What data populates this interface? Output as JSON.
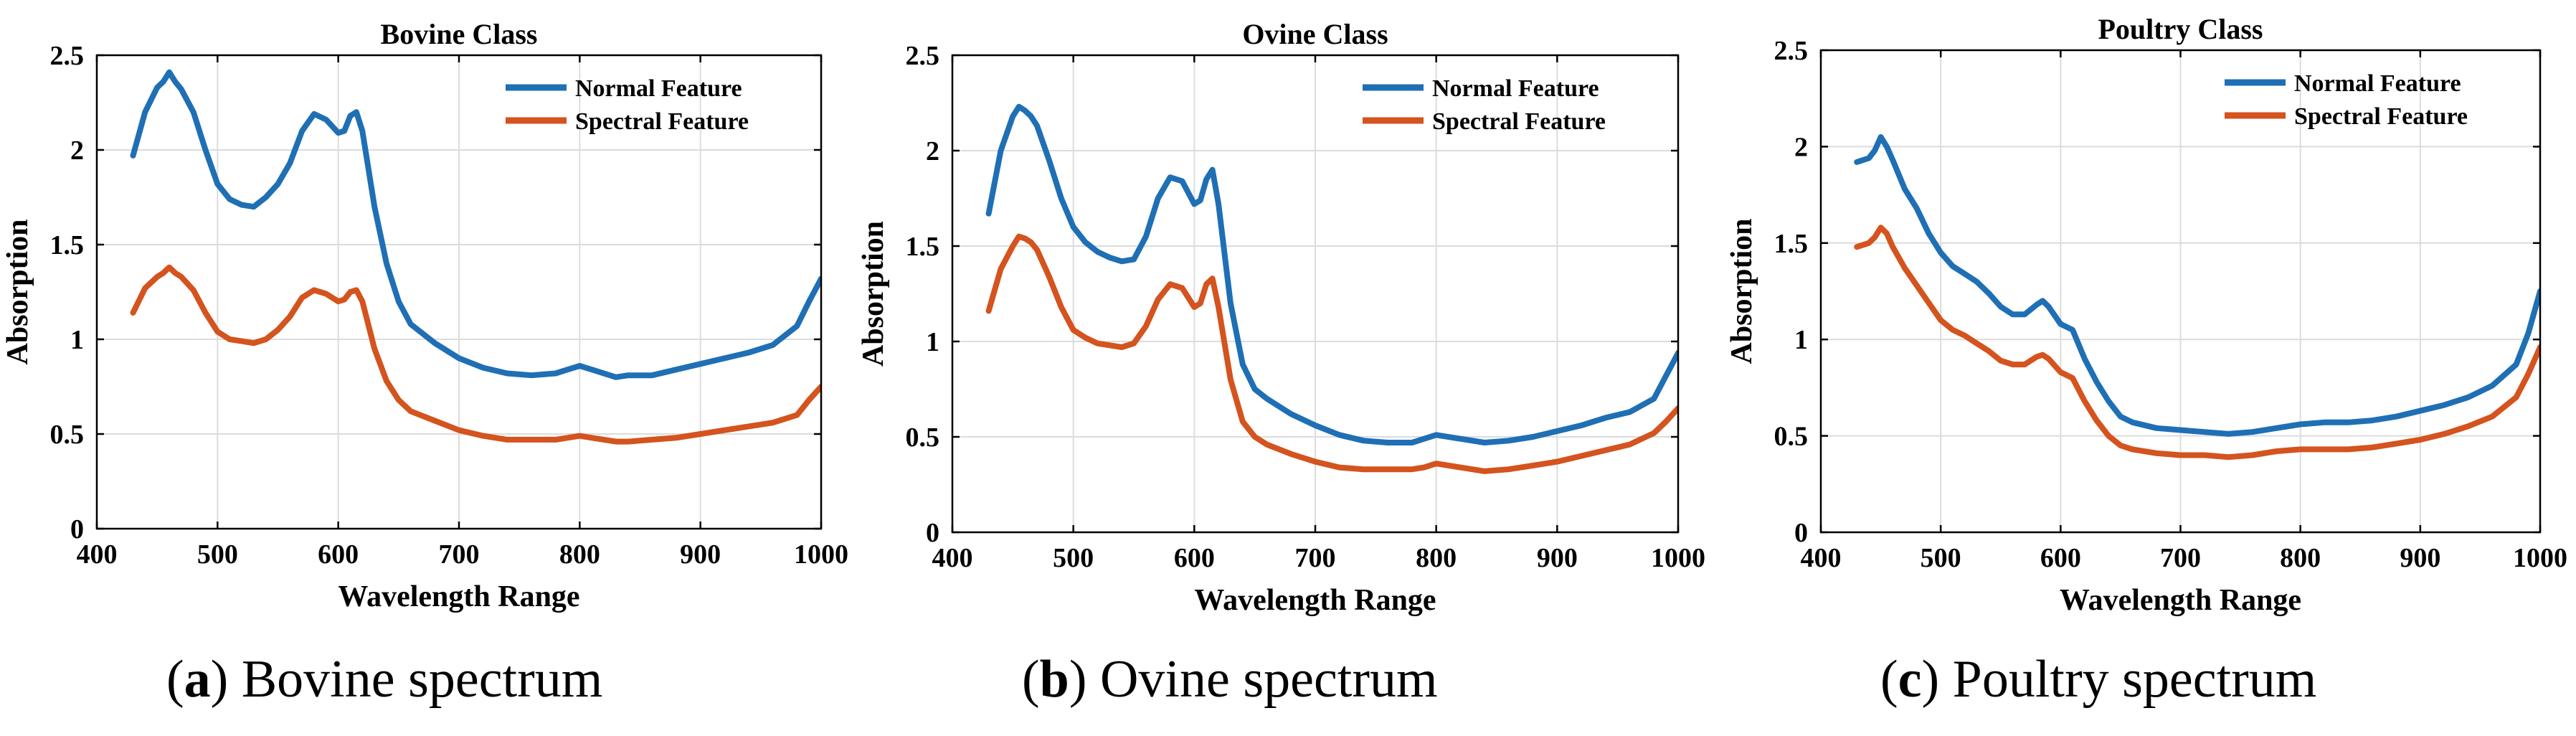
{
  "chart_data": [
    {
      "type": "line",
      "title": "Bovine Class",
      "xlabel": "Wavelength Range",
      "ylabel": "Absorption",
      "xlim": [
        400,
        1000
      ],
      "ylim": [
        0,
        2.5
      ],
      "xticks": [
        "400",
        "500",
        "600",
        "700",
        "800",
        "900",
        "1000"
      ],
      "yticks": [
        "0",
        "0.5",
        "1",
        "1.5",
        "2",
        "2.5"
      ],
      "grid": true,
      "legend_position": "top-right",
      "series": [
        {
          "name": "Normal Feature",
          "color": "#1f6fb5",
          "x": [
            430,
            440,
            450,
            455,
            460,
            465,
            470,
            480,
            490,
            500,
            510,
            520,
            530,
            540,
            550,
            560,
            570,
            580,
            590,
            600,
            605,
            610,
            615,
            620,
            630,
            640,
            650,
            660,
            680,
            700,
            720,
            740,
            760,
            780,
            790,
            800,
            810,
            830,
            840,
            860,
            880,
            900,
            920,
            940,
            960,
            980,
            990,
            1000
          ],
          "y": [
            1.97,
            2.2,
            2.33,
            2.36,
            2.41,
            2.36,
            2.32,
            2.2,
            2.0,
            1.82,
            1.74,
            1.71,
            1.7,
            1.75,
            1.82,
            1.93,
            2.1,
            2.19,
            2.16,
            2.09,
            2.1,
            2.18,
            2.2,
            2.1,
            1.7,
            1.4,
            1.2,
            1.08,
            0.98,
            0.9,
            0.85,
            0.82,
            0.81,
            0.82,
            0.84,
            0.86,
            0.84,
            0.8,
            0.81,
            0.81,
            0.84,
            0.87,
            0.9,
            0.93,
            0.97,
            1.07,
            1.2,
            1.32
          ]
        },
        {
          "name": "Spectral Feature",
          "color": "#d4531e",
          "x": [
            430,
            440,
            450,
            455,
            460,
            465,
            470,
            480,
            490,
            500,
            510,
            520,
            530,
            540,
            550,
            560,
            570,
            580,
            590,
            600,
            605,
            610,
            615,
            620,
            630,
            640,
            650,
            660,
            680,
            700,
            720,
            740,
            760,
            780,
            790,
            800,
            810,
            830,
            840,
            860,
            880,
            900,
            920,
            940,
            960,
            980,
            990,
            1000
          ],
          "y": [
            1.14,
            1.27,
            1.33,
            1.35,
            1.38,
            1.35,
            1.33,
            1.26,
            1.14,
            1.04,
            1.0,
            0.99,
            0.98,
            1.0,
            1.05,
            1.12,
            1.22,
            1.26,
            1.24,
            1.2,
            1.21,
            1.25,
            1.26,
            1.2,
            0.95,
            0.78,
            0.68,
            0.62,
            0.57,
            0.52,
            0.49,
            0.47,
            0.47,
            0.47,
            0.48,
            0.49,
            0.48,
            0.46,
            0.46,
            0.47,
            0.48,
            0.5,
            0.52,
            0.54,
            0.56,
            0.6,
            0.68,
            0.75
          ]
        }
      ]
    },
    {
      "type": "line",
      "title": "Ovine Class",
      "xlabel": "Wavelength Range",
      "ylabel": "Absorption",
      "xlim": [
        400,
        1000
      ],
      "ylim": [
        0,
        2.5
      ],
      "xticks": [
        "400",
        "500",
        "600",
        "700",
        "800",
        "900",
        "1000"
      ],
      "yticks": [
        "0",
        "0.5",
        "1",
        "1.5",
        "2",
        "2.5"
      ],
      "grid": true,
      "legend_position": "top-right",
      "series": [
        {
          "name": "Normal Feature",
          "color": "#1f6fb5",
          "x": [
            430,
            440,
            450,
            455,
            460,
            465,
            470,
            480,
            490,
            500,
            510,
            520,
            530,
            540,
            550,
            560,
            570,
            580,
            590,
            600,
            605,
            610,
            615,
            620,
            630,
            640,
            650,
            660,
            680,
            700,
            720,
            740,
            760,
            780,
            790,
            800,
            820,
            840,
            860,
            880,
            900,
            920,
            940,
            960,
            980,
            990,
            1000
          ],
          "y": [
            1.67,
            2.0,
            2.18,
            2.23,
            2.21,
            2.18,
            2.13,
            1.95,
            1.75,
            1.6,
            1.52,
            1.47,
            1.44,
            1.42,
            1.43,
            1.55,
            1.75,
            1.86,
            1.84,
            1.72,
            1.74,
            1.85,
            1.9,
            1.72,
            1.2,
            0.88,
            0.75,
            0.7,
            0.62,
            0.56,
            0.51,
            0.48,
            0.47,
            0.47,
            0.49,
            0.51,
            0.49,
            0.47,
            0.48,
            0.5,
            0.53,
            0.56,
            0.6,
            0.63,
            0.7,
            0.82,
            0.94
          ]
        },
        {
          "name": "Spectral Feature",
          "color": "#d4531e",
          "x": [
            430,
            440,
            450,
            455,
            460,
            465,
            470,
            480,
            490,
            500,
            510,
            520,
            530,
            540,
            550,
            560,
            570,
            580,
            590,
            600,
            605,
            610,
            615,
            620,
            630,
            640,
            650,
            660,
            680,
            700,
            720,
            740,
            760,
            780,
            790,
            800,
            820,
            840,
            860,
            880,
            900,
            920,
            940,
            960,
            980,
            990,
            1000
          ],
          "y": [
            1.16,
            1.38,
            1.5,
            1.55,
            1.54,
            1.52,
            1.48,
            1.34,
            1.18,
            1.06,
            1.02,
            0.99,
            0.98,
            0.97,
            0.99,
            1.08,
            1.22,
            1.3,
            1.28,
            1.18,
            1.2,
            1.3,
            1.33,
            1.18,
            0.8,
            0.58,
            0.5,
            0.46,
            0.41,
            0.37,
            0.34,
            0.33,
            0.33,
            0.33,
            0.34,
            0.36,
            0.34,
            0.32,
            0.33,
            0.35,
            0.37,
            0.4,
            0.43,
            0.46,
            0.52,
            0.58,
            0.65
          ]
        }
      ]
    },
    {
      "type": "line",
      "title": "Poultry Class",
      "xlabel": "Wavelength Range",
      "ylabel": "Absorption",
      "xlim": [
        400,
        1000
      ],
      "ylim": [
        0,
        2.5
      ],
      "xticks": [
        "400",
        "500",
        "600",
        "700",
        "800",
        "900",
        "1000"
      ],
      "yticks": [
        "0",
        "0.5",
        "1",
        "1.5",
        "2",
        "2.5"
      ],
      "grid": true,
      "legend_position": "top-right",
      "series": [
        {
          "name": "Normal Feature",
          "color": "#1f6fb5",
          "x": [
            430,
            440,
            445,
            450,
            455,
            460,
            470,
            480,
            490,
            500,
            510,
            520,
            530,
            540,
            550,
            560,
            570,
            580,
            585,
            590,
            600,
            610,
            620,
            630,
            640,
            650,
            660,
            680,
            700,
            720,
            740,
            760,
            780,
            800,
            820,
            840,
            860,
            880,
            900,
            920,
            940,
            960,
            980,
            990,
            1000
          ],
          "y": [
            1.92,
            1.94,
            1.98,
            2.05,
            2.0,
            1.93,
            1.78,
            1.68,
            1.55,
            1.45,
            1.38,
            1.34,
            1.3,
            1.24,
            1.17,
            1.13,
            1.13,
            1.18,
            1.2,
            1.17,
            1.08,
            1.05,
            0.9,
            0.78,
            0.68,
            0.6,
            0.57,
            0.54,
            0.53,
            0.52,
            0.51,
            0.52,
            0.54,
            0.56,
            0.57,
            0.57,
            0.58,
            0.6,
            0.63,
            0.66,
            0.7,
            0.76,
            0.87,
            1.03,
            1.25
          ]
        },
        {
          "name": "Spectral Feature",
          "color": "#d4531e",
          "x": [
            430,
            440,
            445,
            450,
            455,
            460,
            470,
            480,
            490,
            500,
            510,
            520,
            530,
            540,
            550,
            560,
            570,
            580,
            585,
            590,
            600,
            610,
            620,
            630,
            640,
            650,
            660,
            680,
            700,
            720,
            740,
            760,
            780,
            800,
            820,
            840,
            860,
            880,
            900,
            920,
            940,
            960,
            980,
            990,
            1000
          ],
          "y": [
            1.48,
            1.5,
            1.53,
            1.58,
            1.55,
            1.48,
            1.37,
            1.28,
            1.19,
            1.1,
            1.05,
            1.02,
            0.98,
            0.94,
            0.89,
            0.87,
            0.87,
            0.91,
            0.92,
            0.9,
            0.83,
            0.8,
            0.68,
            0.58,
            0.5,
            0.45,
            0.43,
            0.41,
            0.4,
            0.4,
            0.39,
            0.4,
            0.42,
            0.43,
            0.43,
            0.43,
            0.44,
            0.46,
            0.48,
            0.51,
            0.55,
            0.6,
            0.7,
            0.82,
            0.96
          ]
        }
      ]
    }
  ],
  "captions": [
    {
      "label": "(a)",
      "letter": "a",
      "text": "Bovine spectrum"
    },
    {
      "label": "(b)",
      "letter": "b",
      "text": "Ovine spectrum"
    },
    {
      "label": "(c)",
      "letter": "c",
      "text": "Poultry spectrum"
    }
  ]
}
